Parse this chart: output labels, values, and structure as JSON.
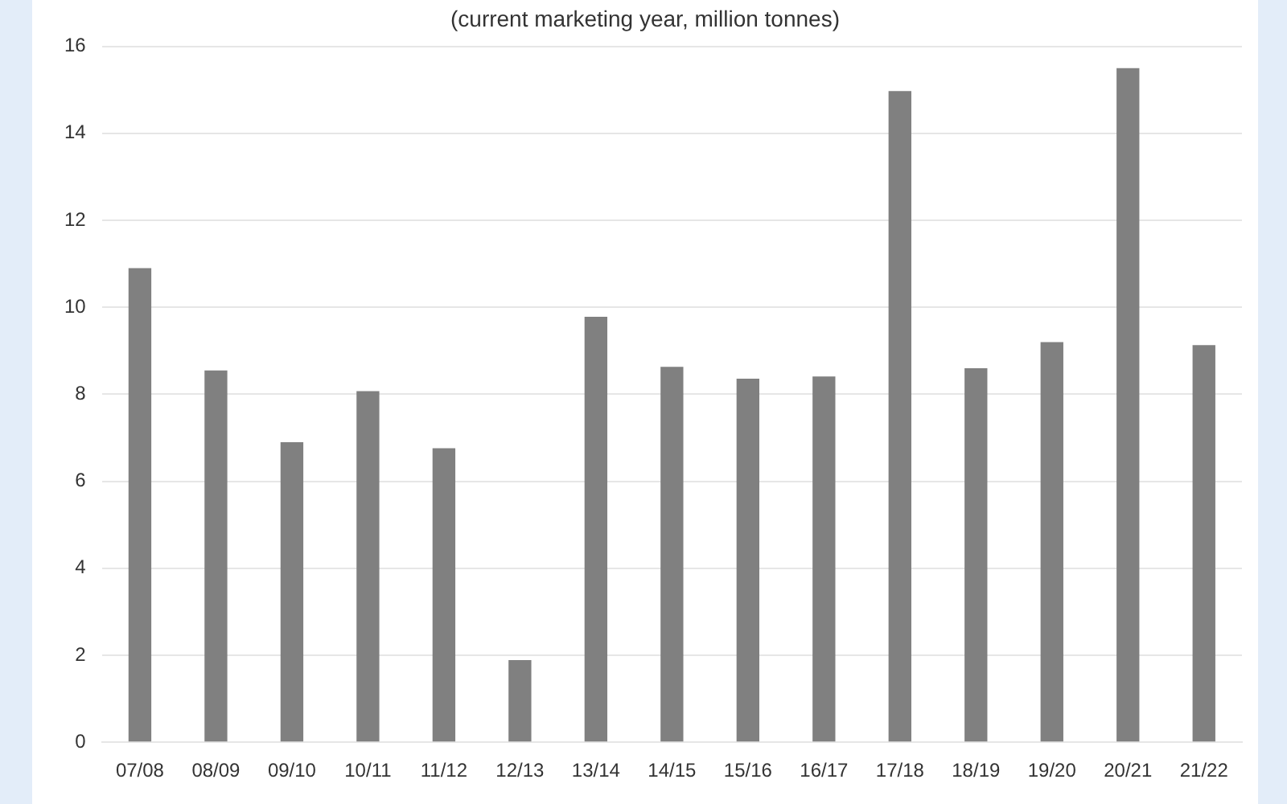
{
  "chart_data": {
    "type": "bar",
    "subtitle": "(current marketing year, million tonnes)",
    "categories": [
      "07/08",
      "08/09",
      "09/10",
      "10/11",
      "11/12",
      "12/13",
      "13/14",
      "14/15",
      "15/16",
      "16/17",
      "17/18",
      "18/19",
      "19/20",
      "20/21",
      "21/22"
    ],
    "values": [
      10.9,
      8.55,
      6.9,
      8.07,
      6.76,
      1.89,
      9.78,
      8.63,
      8.36,
      8.41,
      14.97,
      8.6,
      9.2,
      15.5,
      9.13
    ],
    "color": "#808080",
    "ylim": [
      0,
      16
    ],
    "yticks": [
      0,
      2,
      4,
      6,
      8,
      10,
      12,
      14,
      16
    ],
    "grid": "y",
    "legend": false
  }
}
